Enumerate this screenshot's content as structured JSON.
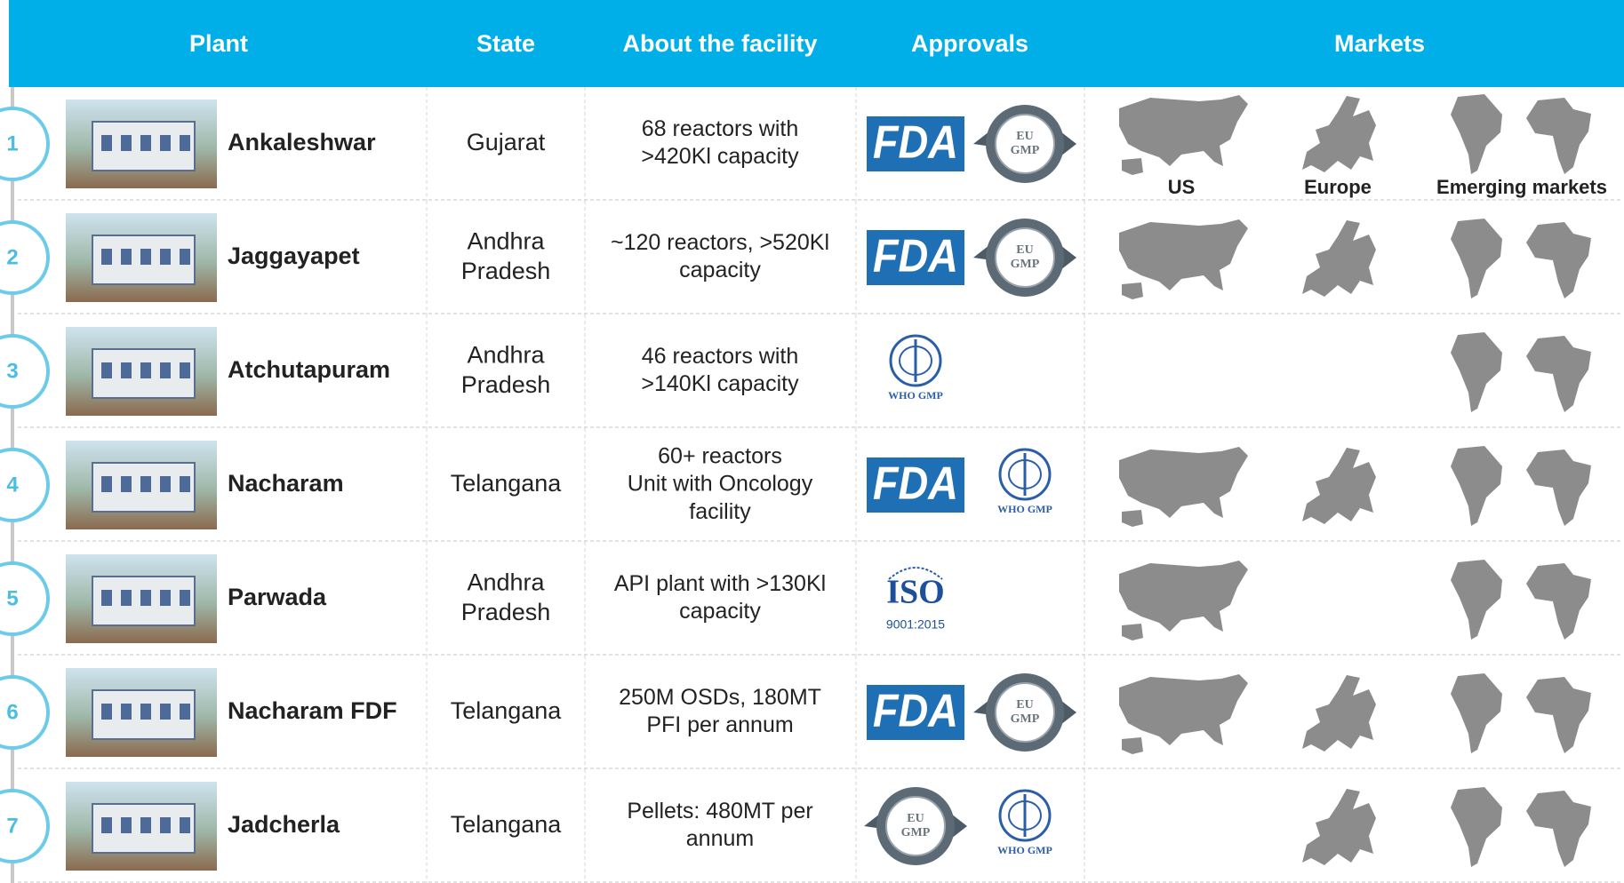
{
  "table": {
    "headers": [
      "Plant",
      "State",
      "About the facility",
      "Approvals",
      "Markets"
    ],
    "market_labels": [
      "US",
      "Europe",
      "Emerging markets"
    ],
    "rows": [
      {
        "number": "1",
        "plant": "Ankaleshwar",
        "state": [
          "Gujarat"
        ],
        "about": [
          "68 reactors with",
          ">420Kl capacity"
        ],
        "approvals": [
          [
            "FDA"
          ],
          [
            "EU",
            "GMP"
          ]
        ],
        "markets": [
          true,
          true,
          true
        ]
      },
      {
        "number": "2",
        "plant": "Jaggayapet",
        "state": [
          "Andhra",
          "Pradesh"
        ],
        "about": [
          "~120 reactors, >520Kl",
          "capacity"
        ],
        "approvals": [
          [
            "FDA"
          ],
          [
            "EU",
            "GMP"
          ]
        ],
        "markets": [
          true,
          true,
          true
        ]
      },
      {
        "number": "3",
        "plant": "Atchutapuram",
        "state": [
          "Andhra",
          "Pradesh"
        ],
        "about": [
          "46 reactors with",
          ">140Kl capacity"
        ],
        "approvals": [
          [
            "WHO GMP"
          ]
        ],
        "markets": [
          false,
          false,
          true
        ]
      },
      {
        "number": "4",
        "plant": "Nacharam",
        "state": [
          "Telangana"
        ],
        "about": [
          "60+ reactors",
          "Unit with Oncology",
          "facility"
        ],
        "approvals": [
          [
            "FDA"
          ],
          [
            "WHO GMP"
          ]
        ],
        "markets": [
          true,
          true,
          true
        ]
      },
      {
        "number": "5",
        "plant": "Parwada",
        "state": [
          "Andhra",
          "Pradesh"
        ],
        "about": [
          "API plant with >130Kl",
          "capacity"
        ],
        "approvals": [
          [
            "ISO",
            "9001:2015"
          ]
        ],
        "markets": [
          true,
          false,
          true
        ]
      },
      {
        "number": "6",
        "plant": "Nacharam FDF",
        "state": [
          "Telangana"
        ],
        "about": [
          "250M OSDs, 180MT",
          "PFI per annum"
        ],
        "approvals": [
          [
            "FDA"
          ],
          [
            "EU",
            "GMP"
          ]
        ],
        "markets": [
          true,
          true,
          true
        ]
      },
      {
        "number": "7",
        "plant": "Jadcherla",
        "state": [
          "Telangana"
        ],
        "about": [
          "Pellets: 480MT per",
          "annum"
        ],
        "approvals": [
          [
            "EU",
            "GMP"
          ],
          [
            "WHO GMP"
          ]
        ],
        "markets": [
          false,
          true,
          true
        ]
      }
    ]
  }
}
